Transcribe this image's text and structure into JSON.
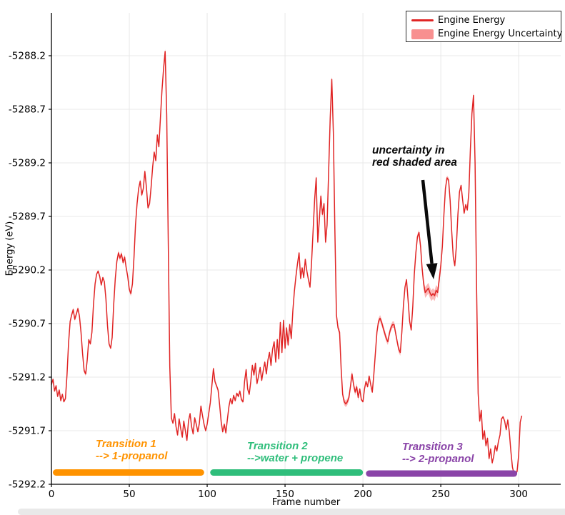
{
  "chart_data": {
    "type": "line",
    "title": "",
    "xlabel": "Frame number",
    "ylabel": "Energy (eV)",
    "xlim": [
      0,
      327
    ],
    "ylim": [
      -5292.2,
      -5287.8
    ],
    "grid": true,
    "xticks": {
      "values": [
        0,
        50,
        100,
        150,
        200,
        250,
        300
      ],
      "labels": [
        "0",
        "50",
        "100",
        "150",
        "200",
        "250",
        "300"
      ]
    },
    "yticks": {
      "values": [
        -5288.2,
        -5288.7,
        -5289.2,
        -5289.7,
        -5290.2,
        -5290.7,
        -5291.2,
        -5291.7,
        -5292.2
      ],
      "labels": [
        "-5288.2",
        "-5288.7",
        "-5289.2",
        "-5289.7",
        "-5290.2",
        "-5290.7",
        "-5291.2",
        "-5291.7",
        "-5292.2"
      ]
    },
    "legend": {
      "position": "upper right",
      "entries": [
        {
          "label": "Engine Energy",
          "type": "line",
          "color": "#e02525"
        },
        {
          "label": "Engine Energy Uncertainty",
          "type": "patch",
          "color": "#f89090"
        }
      ]
    },
    "colors": {
      "line": "#e02525",
      "band": "#f87272",
      "grid": "#e8e8e8",
      "spine": "#000000",
      "arrow": "#0a0a0a"
    },
    "series": [
      {
        "name": "Engine Energy",
        "color": "#e02525",
        "x_start_frame": 0,
        "y": [
          -5291.27,
          -5291.22,
          -5291.33,
          -5291.28,
          -5291.38,
          -5291.32,
          -5291.42,
          -5291.36,
          -5291.43,
          -5291.4,
          -5291.18,
          -5290.88,
          -5290.68,
          -5290.62,
          -5290.57,
          -5290.66,
          -5290.61,
          -5290.56,
          -5290.63,
          -5290.78,
          -5290.98,
          -5291.14,
          -5291.17,
          -5291.04,
          -5290.85,
          -5290.89,
          -5290.78,
          -5290.52,
          -5290.33,
          -5290.24,
          -5290.21,
          -5290.26,
          -5290.34,
          -5290.27,
          -5290.31,
          -5290.47,
          -5290.72,
          -5290.89,
          -5290.93,
          -5290.83,
          -5290.52,
          -5290.28,
          -5290.12,
          -5290.04,
          -5290.09,
          -5290.05,
          -5290.13,
          -5290.08,
          -5290.18,
          -5290.26,
          -5290.38,
          -5290.42,
          -5290.33,
          -5290.08,
          -5289.78,
          -5289.58,
          -5289.44,
          -5289.37,
          -5289.5,
          -5289.44,
          -5289.28,
          -5289.43,
          -5289.62,
          -5289.58,
          -5289.43,
          -5289.24,
          -5289.1,
          -5289.18,
          -5288.94,
          -5289.05,
          -5288.78,
          -5288.52,
          -5288.32,
          -5288.16,
          -5288.75,
          -5289.9,
          -5291.1,
          -5291.58,
          -5291.63,
          -5291.54,
          -5291.66,
          -5291.74,
          -5291.59,
          -5291.68,
          -5291.76,
          -5291.61,
          -5291.7,
          -5291.79,
          -5291.61,
          -5291.54,
          -5291.66,
          -5291.73,
          -5291.58,
          -5291.64,
          -5291.71,
          -5291.63,
          -5291.47,
          -5291.56,
          -5291.64,
          -5291.7,
          -5291.64,
          -5291.54,
          -5291.44,
          -5291.28,
          -5291.12,
          -5291.24,
          -5291.28,
          -5291.32,
          -5291.46,
          -5291.62,
          -5291.71,
          -5291.64,
          -5291.72,
          -5291.59,
          -5291.47,
          -5291.4,
          -5291.45,
          -5291.37,
          -5291.42,
          -5291.35,
          -5291.38,
          -5291.33,
          -5291.41,
          -5291.43,
          -5291.24,
          -5291.13,
          -5291.31,
          -5291.36,
          -5291.24,
          -5291.09,
          -5291.18,
          -5291.07,
          -5291.26,
          -5291.19,
          -5291.11,
          -5291.23,
          -5291.14,
          -5291.06,
          -5291.17,
          -5291.04,
          -5290.97,
          -5291.09,
          -5290.94,
          -5290.87,
          -5291.06,
          -5290.85,
          -5291.03,
          -5290.69,
          -5290.97,
          -5290.67,
          -5290.93,
          -5290.74,
          -5290.9,
          -5290.71,
          -5290.84,
          -5290.58,
          -5290.4,
          -5290.26,
          -5290.14,
          -5290.04,
          -5290.28,
          -5290.18,
          -5290.27,
          -5290.1,
          -5290.21,
          -5290.29,
          -5290.36,
          -5290.14,
          -5289.84,
          -5289.54,
          -5289.34,
          -5289.94,
          -5289.74,
          -5289.51,
          -5289.68,
          -5289.58,
          -5289.94,
          -5289.78,
          -5289.28,
          -5288.78,
          -5288.42,
          -5288.92,
          -5289.82,
          -5290.62,
          -5290.74,
          -5290.78,
          -5291.12,
          -5291.36,
          -5291.43,
          -5291.45,
          -5291.43,
          -5291.39,
          -5291.29,
          -5291.17,
          -5291.27,
          -5291.34,
          -5291.29,
          -5291.39,
          -5291.31,
          -5291.41,
          -5291.43,
          -5291.31,
          -5291.24,
          -5291.29,
          -5291.19,
          -5291.27,
          -5291.34,
          -5291.18,
          -5290.98,
          -5290.78,
          -5290.68,
          -5290.65,
          -5290.69,
          -5290.74,
          -5290.79,
          -5290.84,
          -5290.87,
          -5290.79,
          -5290.74,
          -5290.71,
          -5290.71,
          -5290.79,
          -5290.87,
          -5290.94,
          -5290.97,
          -5290.78,
          -5290.53,
          -5290.36,
          -5290.29,
          -5290.48,
          -5290.68,
          -5290.76,
          -5290.54,
          -5290.24,
          -5290.04,
          -5289.89,
          -5289.85,
          -5289.98,
          -5290.18,
          -5290.33,
          -5290.41,
          -5290.39,
          -5290.37,
          -5290.41,
          -5290.44,
          -5290.42,
          -5290.44,
          -5290.39,
          -5290.41,
          -5290.29,
          -5290.16,
          -5289.98,
          -5289.68,
          -5289.44,
          -5289.34,
          -5289.36,
          -5289.55,
          -5289.84,
          -5290.08,
          -5290.16,
          -5289.98,
          -5289.68,
          -5289.47,
          -5289.41,
          -5289.54,
          -5289.67,
          -5289.59,
          -5289.64,
          -5289.48,
          -5289.08,
          -5288.74,
          -5288.57,
          -5289.2,
          -5290.4,
          -5291.35,
          -5291.61,
          -5291.51,
          -5291.78,
          -5291.7,
          -5291.84,
          -5291.77,
          -5291.96,
          -5291.87,
          -5292.0,
          -5291.94,
          -5291.84,
          -5291.89,
          -5291.8,
          -5291.74,
          -5291.59,
          -5291.57,
          -5291.61,
          -5291.69,
          -5291.6,
          -5291.71,
          -5291.89,
          -5292.04,
          -5292.1,
          -5292.11,
          -5292.08,
          -5291.93,
          -5291.62,
          -5291.56
        ]
      }
    ],
    "uncertainty": {
      "name": "Engine Energy Uncertainty",
      "default": 0.01,
      "regions": [
        [
          11,
          22,
          0.02
        ],
        [
          43,
          52,
          0.025
        ],
        [
          56,
          65,
          0.018
        ],
        [
          70,
          74,
          0.022
        ],
        [
          104,
          112,
          0.018
        ],
        [
          120,
          141,
          0.015
        ],
        [
          145,
          156,
          0.022
        ],
        [
          168,
          182,
          0.028
        ],
        [
          184,
          197,
          0.03
        ],
        [
          208,
          226,
          0.03
        ],
        [
          233,
          238,
          0.025
        ],
        [
          239,
          251,
          0.05
        ],
        [
          252,
          257,
          0.022
        ],
        [
          269,
          273,
          0.03
        ],
        [
          274,
          283,
          0.018
        ],
        [
          293,
          299,
          0.02
        ]
      ]
    },
    "annotations": [
      {
        "line1": "uncertainty in",
        "line2": "red shaded area",
        "color": "#0a0a0a",
        "arrow": true,
        "points_to_frame": 245,
        "points_to_energy": -5290.3
      }
    ],
    "transitions": [
      {
        "line1": "Transition 1",
        "line2": "--> 1-propanol",
        "color": "#FF9300",
        "bar_start_frame": 3,
        "bar_end_frame": 96,
        "bar_energy": -5292.09
      },
      {
        "line1": "Transition 2",
        "line2": "-->water + propene",
        "color": "#2FBE7B",
        "bar_start_frame": 104,
        "bar_end_frame": 198,
        "bar_energy": -5292.09
      },
      {
        "line1": "Transition 3",
        "line2": "--> 2-propanol",
        "color": "#8A44A8",
        "bar_start_frame": 204,
        "bar_end_frame": 297,
        "bar_energy": -5292.1
      }
    ]
  }
}
